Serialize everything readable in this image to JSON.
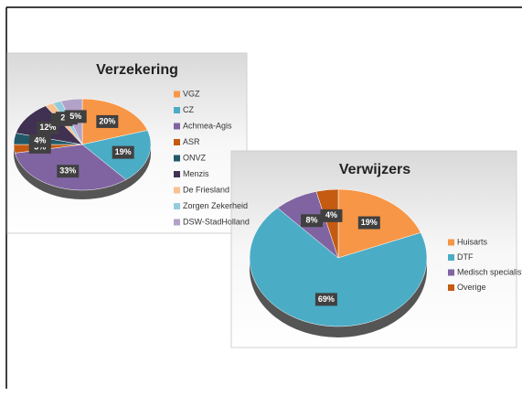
{
  "chart_data": [
    {
      "type": "pie",
      "title": "Verzekering",
      "categories": [
        "VGZ",
        "CZ",
        "Achmea-Agis",
        "ASR",
        "ONVZ",
        "Menzis",
        "De Friesland",
        "Zorgen Zekerheid",
        "DSW-StadHolland"
      ],
      "values": [
        20,
        19,
        33,
        3,
        4,
        12,
        2,
        2,
        5
      ],
      "value_labels": [
        "20%",
        "19%",
        "33%",
        "3%",
        "4%",
        "12%",
        "2%",
        "2%",
        "5%"
      ],
      "colors": [
        "#f79646",
        "#4bacc6",
        "#8064a2",
        "#c55a11",
        "#215968",
        "#403152",
        "#fac090",
        "#93cddd",
        "#b3a2c7"
      ]
    },
    {
      "type": "pie",
      "title": "Verwijzers",
      "categories": [
        "Huisarts",
        "DTF",
        "Medisch specialist",
        "Overige"
      ],
      "values": [
        19,
        69,
        8,
        4
      ],
      "value_labels": [
        "19%",
        "69%",
        "8%",
        "4%"
      ],
      "colors": [
        "#f79646",
        "#4bacc6",
        "#8064a2",
        "#c55a11"
      ]
    }
  ]
}
